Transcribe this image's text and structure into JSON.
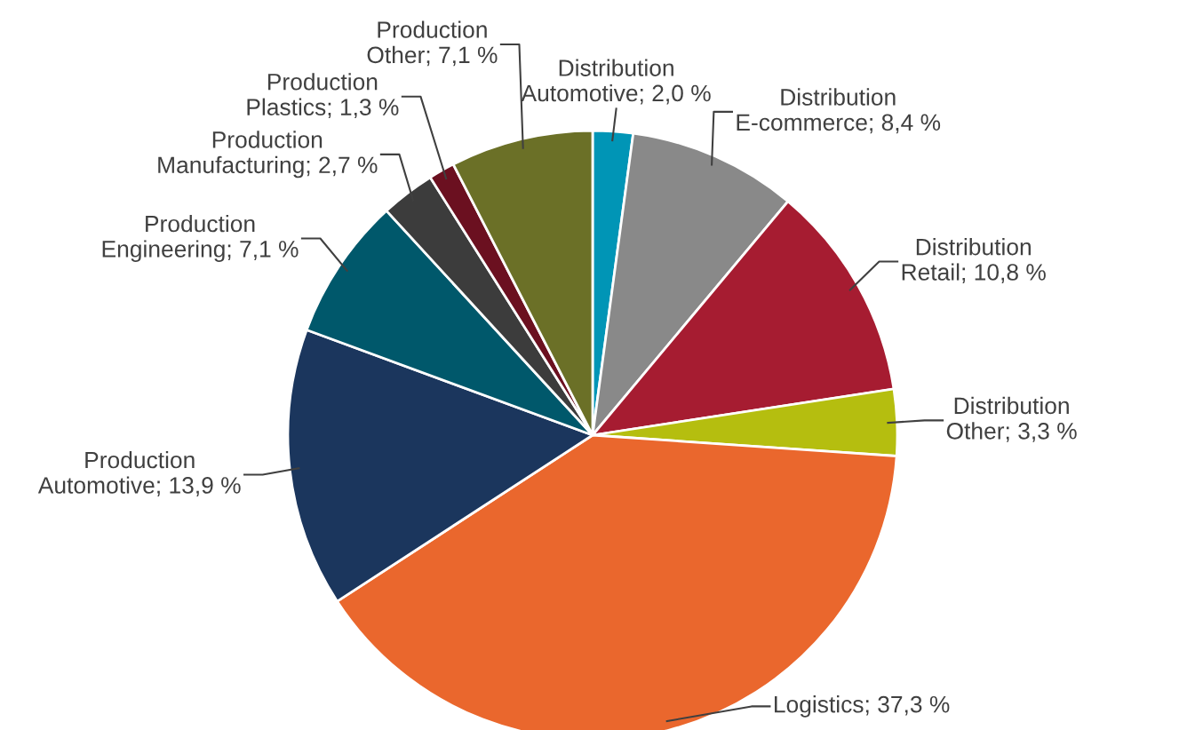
{
  "chart_data": {
    "type": "pie",
    "categories": [
      "Distribution Automotive",
      "Distribution E-commerce",
      "Distribution Retail",
      "Distribution Other",
      "Logistics",
      "Production Automotive",
      "Production Engineering",
      "Production Manufacturing",
      "Production Plastics",
      "Production Other"
    ],
    "values": [
      2.0,
      8.4,
      10.8,
      3.3,
      37.3,
      13.9,
      7.1,
      2.7,
      1.3,
      7.1
    ],
    "colors": [
      "#0095b6",
      "#898989",
      "#a61c31",
      "#b5be0f",
      "#ea672d",
      "#1b365d",
      "#00586b",
      "#3c3c3c",
      "#6b1020",
      "#6b7027"
    ],
    "value_labels": [
      "2,0 %",
      "8,4 %",
      "10,8 %",
      "3,3 %",
      "37,3 %",
      "13,9 %",
      "7,1 %",
      "2,7 %",
      "1,3 %",
      "7,1 %"
    ],
    "legend": false
  }
}
